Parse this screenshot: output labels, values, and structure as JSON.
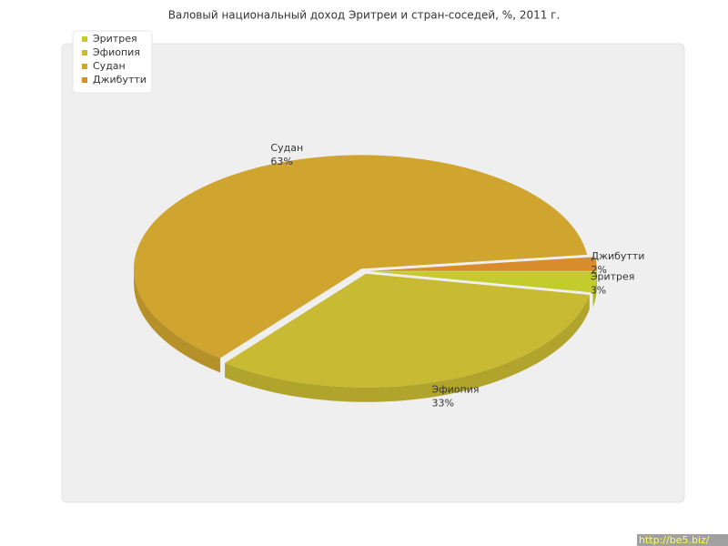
{
  "chart_data": {
    "type": "pie",
    "title": "Валовый национальный доход Эритреи и стран-соседей, %, 2011 г.",
    "categories": [
      "Эритрея",
      "Эфиопия",
      "Судан",
      "Джибутти"
    ],
    "values": [
      3,
      33,
      63,
      2
    ],
    "value_labels": [
      "3%",
      "33%",
      "63%",
      "2%"
    ],
    "colors": [
      "#c3cc2c",
      "#c8ba32",
      "#cfa52f",
      "#d98c2c"
    ],
    "legend": "top-left"
  },
  "watermark": "http://be5.biz/"
}
